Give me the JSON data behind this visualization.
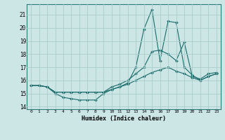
{
  "title": "",
  "xlabel": "Humidex (Indice chaleur)",
  "ylabel": "",
  "background_color": "#cce5e5",
  "grid_color": "#aacccc",
  "line_color": "#1a6b6b",
  "xlim": [
    -0.5,
    23.5
  ],
  "ylim": [
    13.8,
    21.8
  ],
  "yticks": [
    14,
    15,
    16,
    17,
    18,
    19,
    20,
    21
  ],
  "xticks": [
    0,
    1,
    2,
    3,
    4,
    5,
    6,
    7,
    8,
    9,
    10,
    11,
    12,
    13,
    14,
    15,
    16,
    17,
    18,
    19,
    20,
    21,
    22,
    23
  ],
  "series": [
    {
      "x": [
        0,
        1,
        2,
        3,
        4,
        5,
        6,
        7,
        8,
        9,
        10,
        11,
        12,
        13,
        14,
        15,
        16,
        17,
        18,
        19,
        20,
        21,
        22,
        23
      ],
      "y": [
        15.6,
        15.6,
        15.5,
        15.0,
        14.7,
        14.6,
        14.5,
        14.5,
        14.5,
        15.0,
        15.3,
        15.5,
        15.8,
        17.0,
        19.9,
        21.4,
        17.5,
        20.5,
        20.4,
        17.0,
        16.4,
        16.0,
        16.3,
        16.5
      ]
    },
    {
      "x": [
        0,
        1,
        2,
        3,
        4,
        5,
        6,
        7,
        8,
        9,
        10,
        11,
        12,
        13,
        14,
        15,
        16,
        17,
        18,
        19,
        20,
        21,
        22,
        23
      ],
      "y": [
        15.6,
        15.6,
        15.5,
        15.1,
        15.1,
        15.1,
        15.1,
        15.1,
        15.1,
        15.1,
        15.5,
        15.7,
        16.0,
        16.5,
        17.0,
        18.2,
        18.3,
        18.0,
        17.5,
        18.9,
        16.3,
        16.1,
        16.5,
        16.6
      ]
    },
    {
      "x": [
        0,
        1,
        2,
        3,
        4,
        5,
        6,
        7,
        8,
        9,
        10,
        11,
        12,
        13,
        14,
        15,
        16,
        17,
        18,
        19,
        20,
        21,
        22,
        23
      ],
      "y": [
        15.6,
        15.6,
        15.5,
        15.1,
        15.1,
        15.1,
        15.1,
        15.1,
        15.1,
        15.1,
        15.3,
        15.5,
        15.7,
        16.0,
        16.3,
        16.6,
        16.8,
        17.0,
        16.7,
        16.5,
        16.2,
        16.0,
        16.3,
        16.5
      ]
    }
  ]
}
